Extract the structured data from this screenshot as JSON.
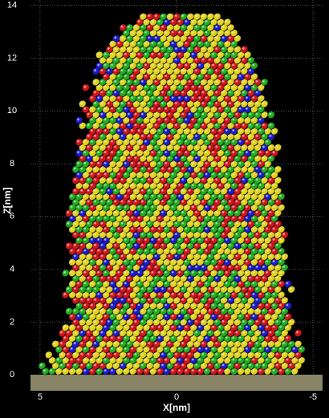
{
  "chart_data": {
    "type": "atoms",
    "xlabel": "X[nm]",
    "ylabel": "Z[nm]",
    "xlim": [
      5.35,
      -5.35
    ],
    "xticks": [
      5,
      0,
      -5
    ],
    "ylim": [
      -0.6,
      14.2
    ],
    "yticks": [
      0,
      2,
      4,
      6,
      8,
      10,
      12,
      14
    ],
    "grid": true,
    "colors": [
      "#e2d31c",
      "#d4141a",
      "#1fae1f",
      "#1a1ad0"
    ]
  }
}
